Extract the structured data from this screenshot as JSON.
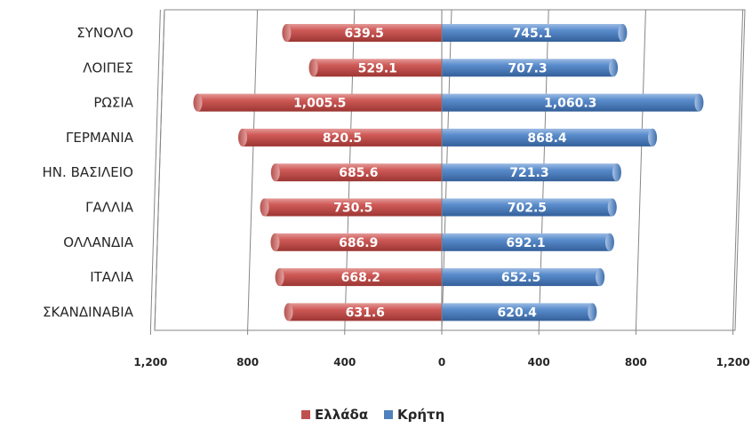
{
  "chart_data": {
    "type": "bar",
    "orientation": "horizontal-diverging",
    "categories": [
      "ΣΥΝΟΛΟ",
      "ΛΟΙΠΕΣ",
      "ΡΩΣΙΑ",
      "ΓΕΡΜΑΝΙΑ",
      "ΗΝ. ΒΑΣΙΛΕΙΟ",
      "ΓΑΛΛΙΑ",
      "ΟΛΛΑΝΔΙΑ",
      "ΙΤΑΛΙΑ",
      "ΣΚΑΝΔΙΝΑΒΙΑ"
    ],
    "series": [
      {
        "name": "Ελλάδα",
        "color": "#c0504d",
        "side": "left",
        "values": [
          639.5,
          529.1,
          1005.5,
          820.5,
          685.6,
          730.5,
          686.9,
          668.2,
          631.6
        ],
        "labels": [
          "639.5",
          "529.1",
          "1,005.5",
          "820.5",
          "685.6",
          "730.5",
          "686.9",
          "668.2",
          "631.6"
        ]
      },
      {
        "name": "Κρήτη",
        "color": "#4f81bd",
        "side": "right",
        "values": [
          745.1,
          707.3,
          1060.3,
          868.4,
          721.3,
          702.5,
          692.1,
          652.5,
          620.4
        ],
        "labels": [
          "745.1",
          "707.3",
          "1,060.3",
          "868.4",
          "721.3",
          "702.5",
          "692.1",
          "652.5",
          "620.4"
        ]
      }
    ],
    "xlim": [
      -1200,
      1200
    ],
    "x_ticks": [
      -1200,
      -800,
      -400,
      0,
      400,
      800,
      1200
    ],
    "x_tick_labels": [
      "1,200",
      "800",
      "400",
      "0",
      "400",
      "800",
      "1,200"
    ],
    "grid": "vertical",
    "legend_position": "bottom",
    "title": "",
    "xlabel": "",
    "ylabel": ""
  }
}
